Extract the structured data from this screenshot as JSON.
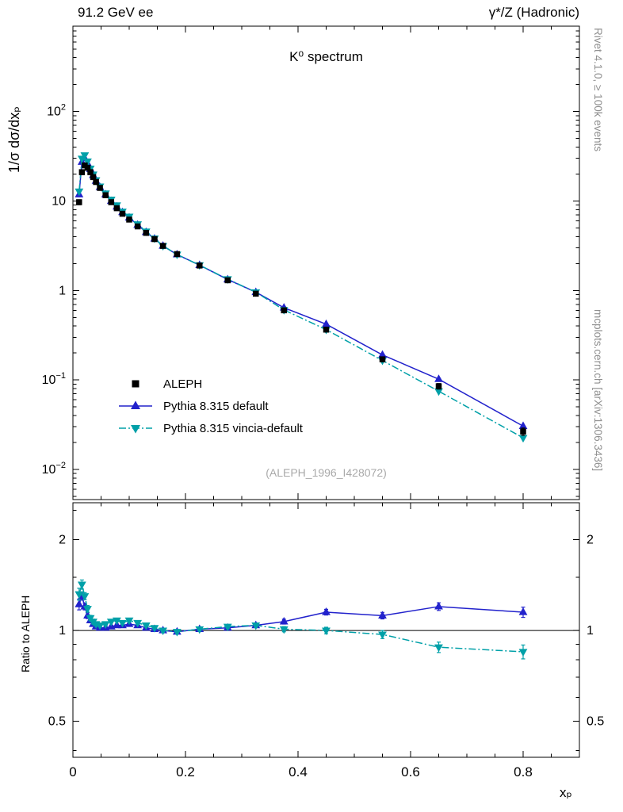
{
  "header": {
    "left": "91.2 GeV ee",
    "right": "γ*/Z (Hadronic)"
  },
  "side_labels": {
    "right_top": "Rivet 4.1.0, ≥ 100k events",
    "right_bottom": "mcplots.cern.ch [arXiv:1306.3436]"
  },
  "watermark": "(ALEPH_1996_I428072)",
  "chart_data": {
    "type": "line",
    "title": "K⁰ spectrum",
    "xlabel": "xₚ",
    "ylabel_main": "1/σ  dσ/dxₚ",
    "ylabel_ratio": "Ratio to ALEPH",
    "xlim": [
      0,
      0.9
    ],
    "main_ylim": [
      0.0046,
      900
    ],
    "ratio_ylim": [
      0.38,
      2.65
    ],
    "x_major_ticks": [
      0,
      0.2,
      0.4,
      0.6,
      0.8
    ],
    "x_minor_step": 0.05,
    "main_y_decades": [
      -2,
      -1,
      0,
      1,
      2
    ],
    "ratio_major_ticks": [
      0.5,
      1,
      2
    ],
    "ratio_minor_ticks": [
      0.4,
      0.6,
      0.7,
      0.8,
      0.9,
      1.5,
      2.5
    ],
    "grid": false,
    "legend_position": "left-middle",
    "x": [
      0.011,
      0.016,
      0.021,
      0.026,
      0.031,
      0.036,
      0.041,
      0.048,
      0.058,
      0.068,
      0.078,
      0.088,
      0.1,
      0.115,
      0.13,
      0.145,
      0.16,
      0.185,
      0.225,
      0.275,
      0.325,
      0.375,
      0.45,
      0.55,
      0.65,
      0.8
    ],
    "series": [
      {
        "name": "ALEPH",
        "role": "data",
        "marker": "square",
        "color": "#000000",
        "values": [
          9.7,
          21.0,
          25.0,
          23.5,
          21.0,
          18.5,
          16.3,
          14.0,
          11.6,
          9.7,
          8.3,
          7.2,
          6.2,
          5.2,
          4.4,
          3.75,
          3.15,
          2.55,
          1.9,
          1.3,
          0.92,
          0.6,
          0.365,
          0.17,
          0.085,
          0.0265
        ],
        "errors": [
          0.6,
          1.2,
          1.0,
          0.9,
          0.8,
          0.7,
          0.6,
          0.5,
          0.4,
          0.35,
          0.3,
          0.25,
          0.2,
          0.17,
          0.15,
          0.13,
          0.11,
          0.09,
          0.07,
          0.05,
          0.035,
          0.025,
          0.016,
          0.009,
          0.006,
          0.0025
        ]
      },
      {
        "name": "Pythia 8.315 default",
        "role": "model",
        "marker": "triangle-up",
        "color": "#2222cc",
        "line": "solid",
        "ratio": [
          1.22,
          1.3,
          1.2,
          1.12,
          1.08,
          1.05,
          1.03,
          1.02,
          1.02,
          1.03,
          1.04,
          1.04,
          1.05,
          1.04,
          1.02,
          1.01,
          1.0,
          0.99,
          1.01,
          1.02,
          1.04,
          1.07,
          1.15,
          1.12,
          1.2,
          1.15
        ],
        "ratio_errors": [
          0.05,
          0.04,
          0.03,
          0.025,
          0.02,
          0.018,
          0.015,
          0.012,
          0.01,
          0.01,
          0.01,
          0.01,
          0.012,
          0.012,
          0.012,
          0.012,
          0.012,
          0.012,
          0.012,
          0.014,
          0.016,
          0.02,
          0.025,
          0.028,
          0.035,
          0.045
        ]
      },
      {
        "name": "Pythia 8.315 vincia-default",
        "role": "model",
        "marker": "triangle-down",
        "color": "#00a0a8",
        "line": "dashdot",
        "ratio": [
          1.32,
          1.42,
          1.3,
          1.18,
          1.1,
          1.07,
          1.05,
          1.04,
          1.05,
          1.07,
          1.08,
          1.06,
          1.08,
          1.06,
          1.04,
          1.02,
          1.0,
          0.99,
          1.01,
          1.03,
          1.04,
          1.01,
          1.0,
          0.97,
          0.88,
          0.85
        ],
        "ratio_errors": [
          0.06,
          0.05,
          0.035,
          0.03,
          0.022,
          0.02,
          0.016,
          0.013,
          0.011,
          0.011,
          0.011,
          0.011,
          0.013,
          0.013,
          0.013,
          0.013,
          0.013,
          0.013,
          0.013,
          0.015,
          0.017,
          0.02,
          0.025,
          0.03,
          0.035,
          0.045
        ]
      }
    ]
  }
}
